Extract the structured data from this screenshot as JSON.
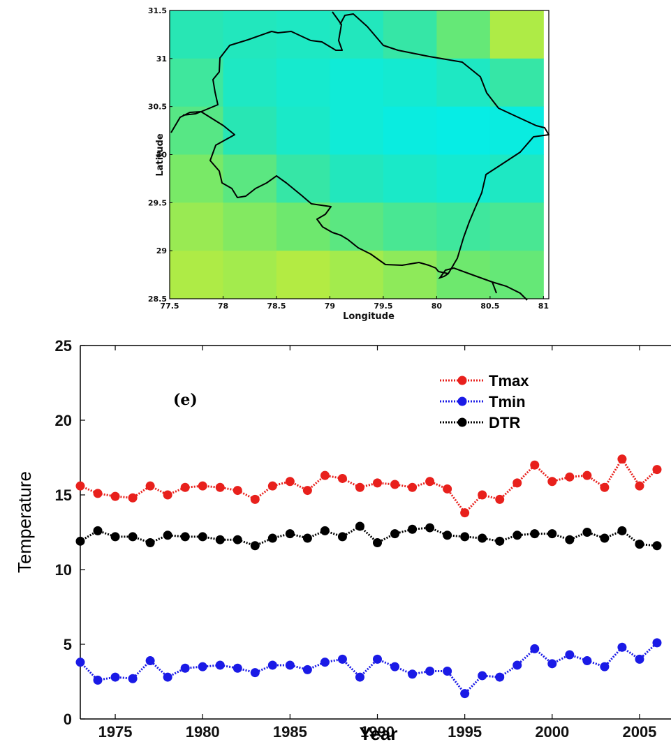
{
  "chart_data": [
    {
      "type": "heatmap",
      "xlabel": "Longitude",
      "ylabel": "Latitude",
      "xlim": [
        77.5,
        81.05
      ],
      "ylim": [
        28.5,
        31.5
      ],
      "x_ticks": [
        "77.5",
        "78",
        "78.5",
        "79",
        "79.5",
        "80",
        "80.5",
        "81"
      ],
      "y_ticks": [
        "28.5",
        "29",
        "29.5",
        "30",
        "30.5",
        "31",
        "31.5"
      ],
      "grid": false,
      "colormap": "cool-to-warm (cyan → green → yellow)",
      "note": "Gridded field of Uttarakhand with state boundary outline; no colorbar shown",
      "x_centers": [
        77.75,
        78.25,
        78.75,
        79.25,
        79.75,
        80.25,
        80.75
      ],
      "y_centers": [
        31.25,
        30.75,
        30.25,
        29.75,
        29.25,
        28.75
      ],
      "values": [
        [
          0.45,
          0.42,
          0.4,
          0.42,
          0.48,
          0.58,
          0.72
        ],
        [
          0.5,
          0.4,
          0.36,
          0.33,
          0.35,
          0.4,
          0.48
        ],
        [
          0.55,
          0.45,
          0.38,
          0.33,
          0.3,
          0.28,
          0.3
        ],
        [
          0.62,
          0.56,
          0.48,
          0.42,
          0.38,
          0.35,
          0.4
        ],
        [
          0.68,
          0.64,
          0.6,
          0.56,
          0.52,
          0.5,
          0.52
        ],
        [
          0.72,
          0.7,
          0.73,
          0.7,
          0.66,
          0.6,
          0.58
        ]
      ]
    },
    {
      "type": "line",
      "label": "(e)",
      "xlabel": "Year",
      "ylabel": "Temperature",
      "xlim": [
        1973,
        2006.8
      ],
      "ylim": [
        0,
        25
      ],
      "x_ticks": [
        "1975",
        "1980",
        "1985",
        "1990",
        "1995",
        "2000",
        "2005"
      ],
      "y_ticks": [
        "0",
        "5",
        "10",
        "15",
        "20",
        "25"
      ],
      "grid": false,
      "legend_position": "top-right",
      "x": [
        1973,
        1974,
        1975,
        1976,
        1977,
        1978,
        1979,
        1980,
        1981,
        1982,
        1983,
        1984,
        1985,
        1986,
        1987,
        1988,
        1989,
        1990,
        1991,
        1992,
        1993,
        1994,
        1995,
        1996,
        1997,
        1998,
        1999,
        2000,
        2001,
        2002,
        2003,
        2004,
        2005,
        2006
      ],
      "series": [
        {
          "name": "Tmax",
          "color": "#e8201c",
          "values": [
            15.6,
            15.1,
            14.9,
            14.8,
            15.6,
            15.0,
            15.5,
            15.6,
            15.5,
            15.3,
            14.7,
            15.6,
            15.9,
            15.3,
            16.3,
            16.1,
            15.5,
            15.8,
            15.7,
            15.5,
            15.9,
            15.4,
            13.8,
            15.0,
            14.7,
            15.8,
            17.0,
            15.9,
            16.2,
            16.3,
            15.5,
            17.4,
            15.6,
            16.7
          ]
        },
        {
          "name": "Tmin",
          "color": "#1a1ae6",
          "values": [
            3.8,
            2.6,
            2.8,
            2.7,
            3.9,
            2.8,
            3.4,
            3.5,
            3.6,
            3.4,
            3.1,
            3.6,
            3.6,
            3.3,
            3.8,
            4.0,
            2.8,
            4.0,
            3.5,
            3.0,
            3.2,
            3.2,
            1.7,
            2.9,
            2.8,
            3.6,
            4.7,
            3.7,
            4.3,
            3.9,
            3.5,
            4.8,
            4.0,
            5.1
          ]
        },
        {
          "name": "DTR",
          "color": "#000000",
          "values": [
            11.9,
            12.6,
            12.2,
            12.2,
            11.8,
            12.3,
            12.2,
            12.2,
            12.0,
            12.0,
            11.6,
            12.1,
            12.4,
            12.1,
            12.6,
            12.2,
            12.9,
            11.8,
            12.4,
            12.7,
            12.8,
            12.3,
            12.2,
            12.1,
            11.9,
            12.3,
            12.4,
            12.4,
            12.0,
            12.5,
            12.1,
            12.6,
            11.7,
            11.6
          ]
        }
      ]
    }
  ]
}
